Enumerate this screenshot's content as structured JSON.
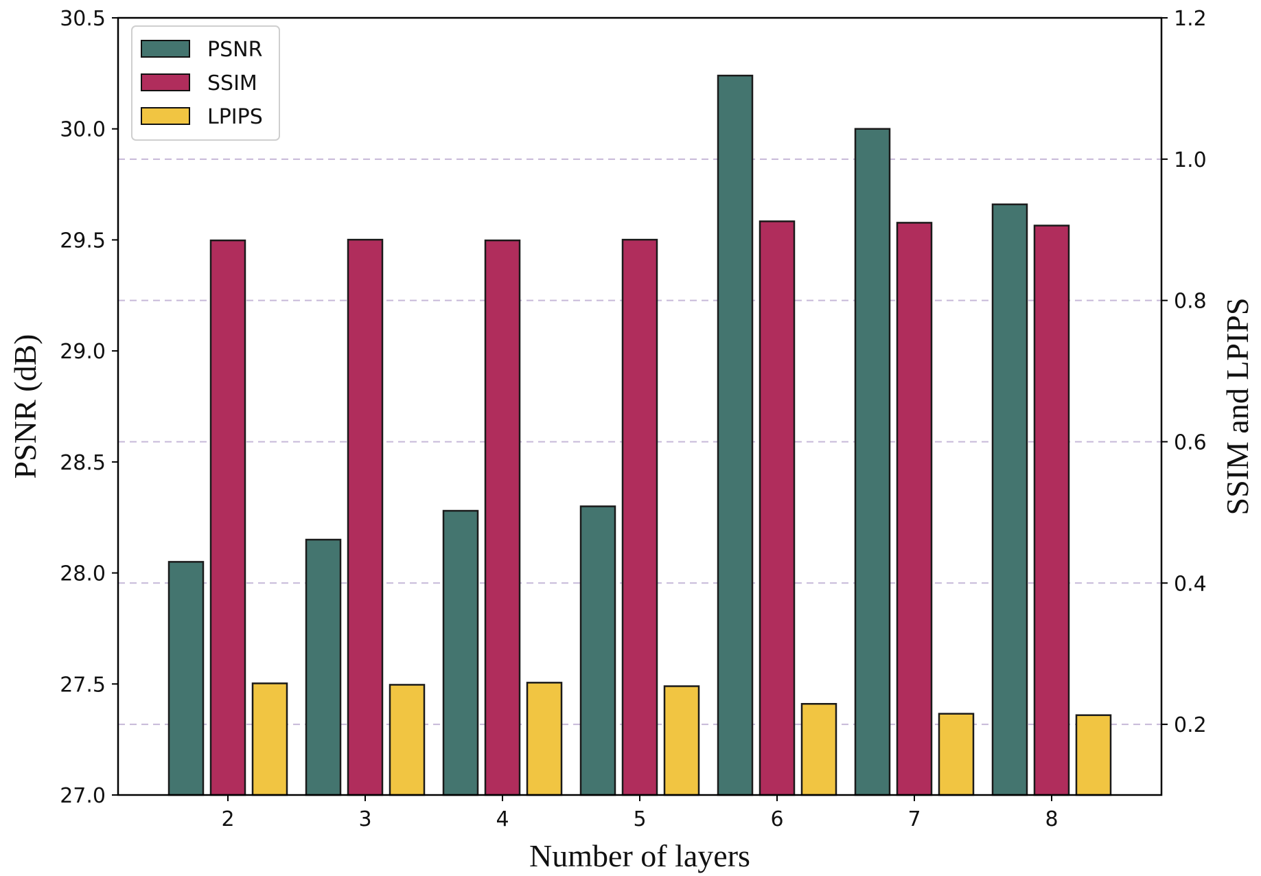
{
  "chart_data": {
    "type": "bar",
    "categories": [
      "2",
      "3",
      "4",
      "5",
      "6",
      "7",
      "8"
    ],
    "series": [
      {
        "name": "PSNR",
        "axis": "left",
        "color": "#44756f",
        "values": [
          28.05,
          28.15,
          28.28,
          28.3,
          30.24,
          30.0,
          29.66
        ]
      },
      {
        "name": "SSIM",
        "axis": "right",
        "color": "#b02d5c",
        "values": [
          0.885,
          0.886,
          0.885,
          0.886,
          0.912,
          0.91,
          0.906
        ]
      },
      {
        "name": "LPIPS",
        "axis": "right",
        "color": "#f1c542",
        "values": [
          0.258,
          0.256,
          0.259,
          0.254,
          0.229,
          0.215,
          0.213
        ]
      }
    ],
    "xlabel": "Number of layers",
    "ylabel": "PSNR (dB)",
    "ylabel_right": "SSIM and LPIPS",
    "ylim": [
      27.0,
      30.5
    ],
    "ylim_right": [
      0.1,
      1.2
    ],
    "yticks": [
      "27.0",
      "27.5",
      "28.0",
      "28.5",
      "29.0",
      "29.5",
      "30.0",
      "30.5"
    ],
    "yticks_right": [
      "0.2",
      "0.4",
      "0.6",
      "0.8",
      "1.0",
      "1.2"
    ],
    "grid": "horizontal dashed at right-axis ticks",
    "legend": "top-left"
  }
}
